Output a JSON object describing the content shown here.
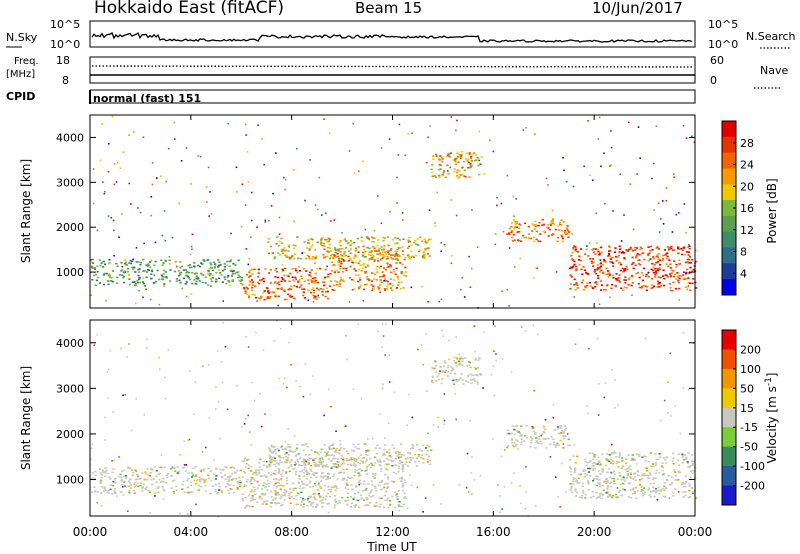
{
  "header": {
    "title": "Hokkaido East (fitACF)",
    "beam": "Beam 15",
    "date": "10/Jun/2017"
  },
  "noise_panel": {
    "left_label": "N.Sky",
    "right_label": "N.Search",
    "left_ticks": [
      "10^5",
      "10^0"
    ],
    "right_ticks": [
      "10^5",
      "10^0"
    ]
  },
  "freq_panel": {
    "left_label_line1": "Freq.",
    "left_label_line2": "[MHz]",
    "right_label": "Nave",
    "left_ticks": [
      "18",
      "8"
    ],
    "right_ticks": [
      "60",
      "0"
    ]
  },
  "cpid_panel": {
    "label": "CPID",
    "value": "normal (fast) 151"
  },
  "xaxis": {
    "label": "Time UT",
    "ticks": [
      "00:00",
      "04:00",
      "08:00",
      "12:00",
      "16:00",
      "20:00",
      "00:00"
    ]
  },
  "chart_data": [
    {
      "type": "heatmap",
      "title": "",
      "xlabel": "Time UT",
      "ylabel": "Slant Range [km]",
      "xlim": [
        0,
        24
      ],
      "ylim": [
        200,
        4500
      ],
      "yticks": [
        1000,
        2000,
        3000,
        4000
      ],
      "colorbar": {
        "label": "Power [dB]",
        "range": [
          0,
          32
        ],
        "ticks": [
          "4",
          "8",
          "12",
          "16",
          "20",
          "24",
          "28"
        ],
        "colors": [
          "#0000e6",
          "#1e3c96",
          "#2e6e88",
          "#3f8c6a",
          "#5aa050",
          "#7cb83a",
          "#f0c800",
          "#f59a00",
          "#f06400",
          "#e63200",
          "#e00000"
        ]
      },
      "regions": [
        {
          "t0": 0.0,
          "t1": 6.0,
          "r0": 700,
          "r1": 1300,
          "level": 12
        },
        {
          "t0": 6.0,
          "t1": 9.5,
          "r0": 400,
          "r1": 1100,
          "level": 26
        },
        {
          "t0": 9.5,
          "t1": 12.5,
          "r0": 600,
          "r1": 1500,
          "level": 24
        },
        {
          "t0": 7.0,
          "t1": 13.5,
          "r0": 1300,
          "r1": 1800,
          "level": 20
        },
        {
          "t0": 13.5,
          "t1": 15.5,
          "r0": 3100,
          "r1": 3700,
          "level": 22
        },
        {
          "t0": 16.5,
          "t1": 19.0,
          "r0": 1700,
          "r1": 2200,
          "level": 24
        },
        {
          "t0": 19.0,
          "t1": 24.0,
          "r0": 600,
          "r1": 1600,
          "level": 28
        }
      ]
    },
    {
      "type": "heatmap",
      "title": "",
      "xlabel": "Time UT",
      "ylabel": "Slant Range [km]",
      "xlim": [
        0,
        24
      ],
      "ylim": [
        200,
        4500
      ],
      "yticks": [
        1000,
        2000,
        3000,
        4000
      ],
      "colorbar": {
        "label": "Velocity [m s^-1]",
        "range": [
          -250,
          250
        ],
        "ticks": [
          "200",
          "100",
          "50",
          "15",
          "-15",
          "-50",
          "-100",
          "-200"
        ],
        "colors": [
          "#1a1acc",
          "#2a5aa0",
          "#3a8c5a",
          "#7acc3a",
          "#c8c8c0",
          "#f0c800",
          "#f09600",
          "#f05000",
          "#e60000"
        ]
      },
      "regions": [
        {
          "t0": 0.0,
          "t1": 6.0,
          "r0": 700,
          "r1": 1300,
          "level": 0
        },
        {
          "t0": 6.0,
          "t1": 12.5,
          "r0": 400,
          "r1": 1500,
          "level": 0
        },
        {
          "t0": 7.0,
          "t1": 13.5,
          "r0": 1300,
          "r1": 1800,
          "level": 0
        },
        {
          "t0": 13.5,
          "t1": 15.5,
          "r0": 3100,
          "r1": 3700,
          "level": 0
        },
        {
          "t0": 16.5,
          "t1": 19.0,
          "r0": 1700,
          "r1": 2200,
          "level": 0
        },
        {
          "t0": 19.0,
          "t1": 24.0,
          "r0": 600,
          "r1": 1600,
          "level": 0
        }
      ]
    }
  ]
}
